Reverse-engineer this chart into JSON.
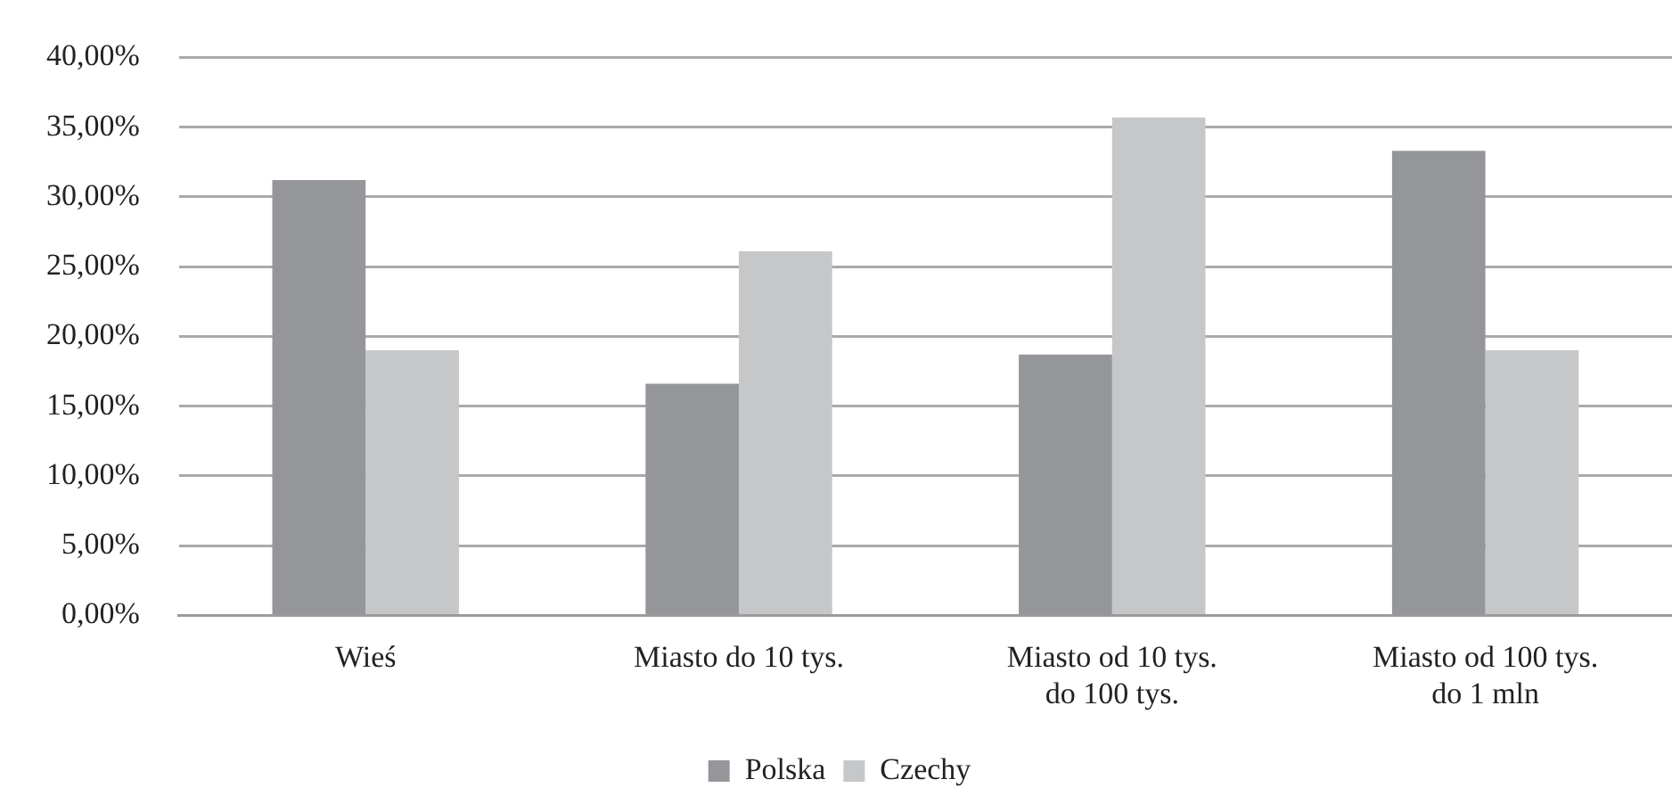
{
  "chart_data": {
    "type": "bar",
    "categories": [
      "Wieś",
      "Miasto do 10 tys.",
      "Miasto od 10 tys. do 100 tys.",
      "Miasto od 100 tys. do 1 mln"
    ],
    "series": [
      {
        "name": "Polska",
        "color": "#959699",
        "values": [
          31.2,
          16.6,
          18.7,
          33.3
        ]
      },
      {
        "name": "Czechy",
        "color": "#c6c7c9",
        "values": [
          19.0,
          26.1,
          35.7,
          19.0
        ]
      }
    ],
    "ylim": [
      0,
      40
    ],
    "yticks": [
      {
        "value": 0,
        "label": "0,00%"
      },
      {
        "value": 5,
        "label": "5,00%"
      },
      {
        "value": 10,
        "label": "10,00%"
      },
      {
        "value": 15,
        "label": "15,00%"
      },
      {
        "value": 20,
        "label": "20,00%"
      },
      {
        "value": 25,
        "label": "25,00%"
      },
      {
        "value": 30,
        "label": "30,00%"
      },
      {
        "value": 35,
        "label": "35,00%"
      },
      {
        "value": 40,
        "label": "40,00%"
      }
    ],
    "grid": "y",
    "legend": "bottom"
  }
}
